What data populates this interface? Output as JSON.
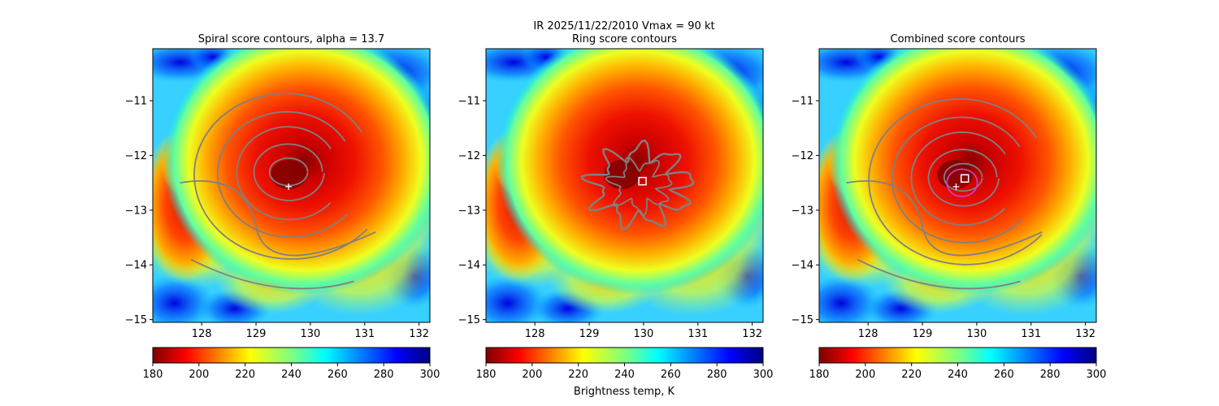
{
  "figure": {
    "suptitle_line1": "IR  2025/11/22/2010    Vmax = 90 kt",
    "colorbar_label": "Brightness temp, K"
  },
  "chart_data": [
    {
      "type": "heatmap",
      "title": "Spiral score contours, alpha = 13.7",
      "xlim": [
        127.1,
        132.2
      ],
      "ylim": [
        -15.05,
        -10.05
      ],
      "x_ticks": [
        128,
        129,
        130,
        131,
        132
      ],
      "y_ticks": [
        -11,
        -12,
        -13,
        -14,
        -15
      ],
      "x_tick_labels": [
        "128",
        "129",
        "130",
        "131",
        "132"
      ],
      "y_tick_labels": [
        "−11",
        "−12",
        "−13",
        "−14",
        "−15"
      ],
      "colormap": "jet",
      "colorbar": {
        "range": [
          180,
          300
        ],
        "ticks": [
          180,
          200,
          220,
          240,
          260,
          280,
          300
        ],
        "tick_labels": [
          "180",
          "200",
          "220",
          "240",
          "260",
          "280",
          "300"
        ]
      },
      "contour_color": "#808080",
      "marker_plus": {
        "x": 129.6,
        "y": -12.57,
        "color": "#ffffff"
      }
    },
    {
      "type": "heatmap",
      "title": "Ring score contours",
      "xlim": [
        127.1,
        132.2
      ],
      "ylim": [
        -15.05,
        -10.05
      ],
      "x_ticks": [
        128,
        129,
        130,
        131,
        132
      ],
      "y_ticks": [
        -11,
        -12,
        -13,
        -14,
        -15
      ],
      "x_tick_labels": [
        "128",
        "129",
        "130",
        "131",
        "132"
      ],
      "y_tick_labels": [
        "−11",
        "−12",
        "−13",
        "−14",
        "−15"
      ],
      "colormap": "jet",
      "colorbar": {
        "range": [
          180,
          300
        ],
        "ticks": [
          180,
          200,
          220,
          240,
          260,
          280,
          300
        ],
        "tick_labels": [
          "180",
          "200",
          "220",
          "240",
          "260",
          "280",
          "300"
        ]
      },
      "contour_color": "#808080",
      "marker_square": {
        "x": 129.98,
        "y": -12.47,
        "color": "#ffffff"
      }
    },
    {
      "type": "heatmap",
      "title": "Combined score contours",
      "xlim": [
        127.1,
        132.2
      ],
      "ylim": [
        -15.05,
        -10.05
      ],
      "x_ticks": [
        128,
        129,
        130,
        131,
        132
      ],
      "y_ticks": [
        -11,
        -12,
        -13,
        -14,
        -15
      ],
      "x_tick_labels": [
        "128",
        "129",
        "130",
        "131",
        "132"
      ],
      "y_tick_labels": [
        "−11",
        "−12",
        "−13",
        "−14",
        "−15"
      ],
      "colormap": "jet",
      "colorbar": {
        "range": [
          180,
          300
        ],
        "ticks": [
          180,
          200,
          220,
          240,
          260,
          280,
          300
        ],
        "tick_labels": [
          "180",
          "200",
          "220",
          "240",
          "260",
          "280",
          "300"
        ]
      },
      "contour_color": "#808080",
      "marker_plus": {
        "x": 129.62,
        "y": -12.57,
        "color": "#ffffff"
      },
      "marker_square": {
        "x": 129.78,
        "y": -12.42,
        "color": "#ffffff"
      },
      "marker_circle_color": "#cc44cc"
    }
  ]
}
